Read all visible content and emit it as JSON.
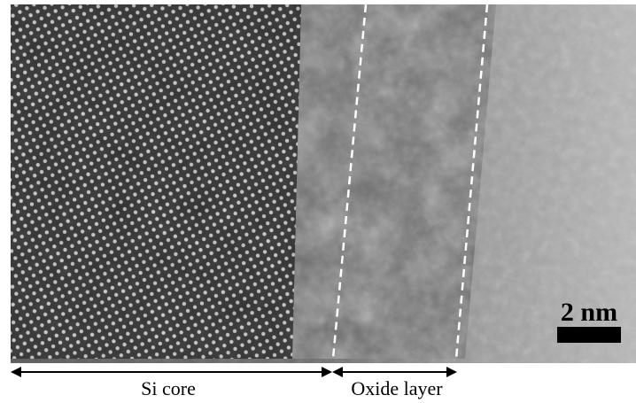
{
  "annotations": {
    "regions": [
      {
        "label": "Si core"
      },
      {
        "label": "Oxide layer"
      }
    ]
  },
  "scale_bar": {
    "label": "2 nm"
  }
}
